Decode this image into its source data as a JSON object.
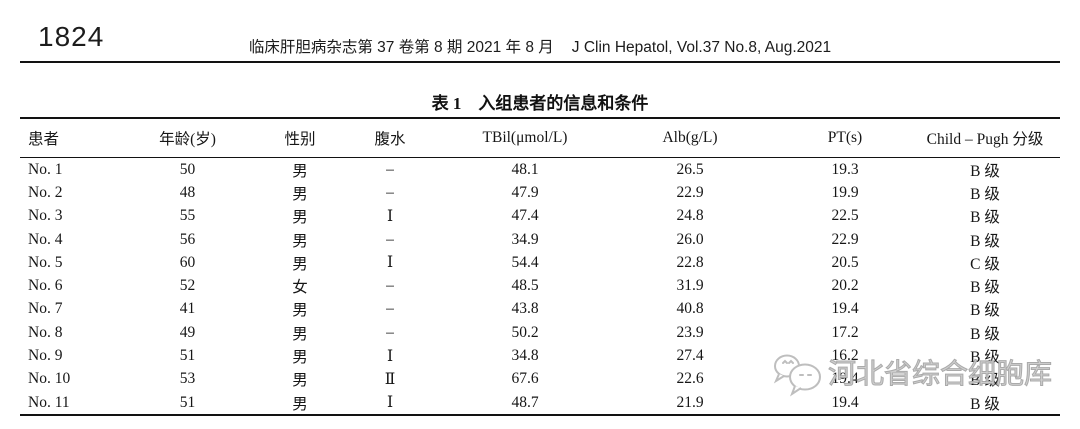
{
  "page": {
    "page_number": "1824",
    "journal_header_cn": "临床肝胆病杂志第 37 卷第 8 期 2021 年 8 月",
    "journal_header_en": "J Clin Hepatol, Vol.37 No.8, Aug.2021"
  },
  "table": {
    "title": "表 1　入组患者的信息和条件",
    "columns": [
      "患者",
      "年龄(岁)",
      "性别",
      "腹水",
      "TBil(μmol/L)",
      "Alb(g/L)",
      "PT(s)",
      "Child – Pugh 分级"
    ],
    "rows": [
      [
        "No. 1",
        "50",
        "男",
        "–",
        "48.1",
        "26.5",
        "19.3",
        "B 级"
      ],
      [
        "No. 2",
        "48",
        "男",
        "–",
        "47.9",
        "22.9",
        "19.9",
        "B 级"
      ],
      [
        "No. 3",
        "55",
        "男",
        "Ⅰ",
        "47.4",
        "24.8",
        "22.5",
        "B 级"
      ],
      [
        "No. 4",
        "56",
        "男",
        "–",
        "34.9",
        "26.0",
        "22.9",
        "B 级"
      ],
      [
        "No. 5",
        "60",
        "男",
        "Ⅰ",
        "54.4",
        "22.8",
        "20.5",
        "C 级"
      ],
      [
        "No. 6",
        "52",
        "女",
        "–",
        "48.5",
        "31.9",
        "20.2",
        "B 级"
      ],
      [
        "No. 7",
        "41",
        "男",
        "–",
        "43.8",
        "40.8",
        "19.4",
        "B 级"
      ],
      [
        "No. 8",
        "49",
        "男",
        "–",
        "50.2",
        "23.9",
        "17.2",
        "B 级"
      ],
      [
        "No. 9",
        "51",
        "男",
        "Ⅰ",
        "34.8",
        "27.4",
        "16.2",
        "B 级"
      ],
      [
        "No. 10",
        "53",
        "男",
        "Ⅱ",
        "67.6",
        "22.6",
        "19.4",
        "B 级"
      ],
      [
        "No. 11",
        "51",
        "男",
        "Ⅰ",
        "48.7",
        "21.9",
        "19.4",
        "B 级"
      ]
    ]
  },
  "watermark": {
    "text": "河北省综合细胞库",
    "icon": "wechat-icon",
    "color": "#bbbbbb"
  }
}
